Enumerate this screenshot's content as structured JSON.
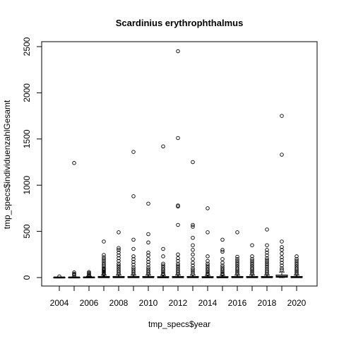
{
  "chart_data": {
    "type": "boxplot",
    "title": "Scardinius erythrophthalmus",
    "xlabel": "tmp_specs$year",
    "ylabel": "tmp_specs$individuenzahlGesamt",
    "ylim": [
      0,
      2500
    ],
    "yticks": [
      0,
      500,
      1000,
      1500,
      2000,
      2500
    ],
    "xtick_labels": [
      "2004",
      "2006",
      "2008",
      "2010",
      "2012",
      "2014",
      "2016",
      "2018",
      "2020"
    ],
    "categories": [
      "2004",
      "2005",
      "2006",
      "2007",
      "2008",
      "2009",
      "2010",
      "2011",
      "2012",
      "2013",
      "2014",
      "2015",
      "2016",
      "2017",
      "2018",
      "2019",
      "2020"
    ],
    "boxes": [
      {
        "year": "2004",
        "q1": 0,
        "median": 1,
        "q3": 3,
        "whisker_low": 0,
        "whisker_high": 5,
        "outliers": [
          12
        ]
      },
      {
        "year": "2005",
        "q1": 0,
        "median": 1,
        "q3": 4,
        "whisker_low": 0,
        "whisker_high": 8,
        "outliers": [
          25,
          35,
          40,
          55,
          1240
        ]
      },
      {
        "year": "2006",
        "q1": 0,
        "median": 2,
        "q3": 6,
        "whisker_low": 0,
        "whisker_high": 14,
        "outliers": [
          20,
          30,
          40,
          50,
          60
        ]
      },
      {
        "year": "2007",
        "q1": 1,
        "median": 4,
        "q3": 12,
        "whisker_low": 0,
        "whisker_high": 28,
        "outliers": [
          35,
          45,
          55,
          65,
          75,
          85,
          95,
          110,
          125,
          140,
          160,
          180,
          200,
          220,
          245,
          390
        ]
      },
      {
        "year": "2008",
        "q1": 1,
        "median": 4,
        "q3": 12,
        "whisker_low": 0,
        "whisker_high": 28,
        "outliers": [
          40,
          55,
          70,
          90,
          110,
          130,
          150,
          180,
          210,
          240,
          270,
          300,
          320,
          490
        ]
      },
      {
        "year": "2009",
        "q1": 1,
        "median": 4,
        "q3": 12,
        "whisker_low": 0,
        "whisker_high": 28,
        "outliers": [
          40,
          55,
          70,
          90,
          110,
          140,
          170,
          200,
          230,
          310,
          410,
          880,
          1360
        ]
      },
      {
        "year": "2010",
        "q1": 1,
        "median": 4,
        "q3": 12,
        "whisker_low": 0,
        "whisker_high": 28,
        "outliers": [
          40,
          55,
          70,
          90,
          110,
          140,
          170,
          200,
          240,
          270,
          380,
          470,
          800
        ]
      },
      {
        "year": "2011",
        "q1": 1,
        "median": 3,
        "q3": 10,
        "whisker_low": 0,
        "whisker_high": 24,
        "outliers": [
          35,
          45,
          60,
          75,
          90,
          110,
          130,
          150,
          230,
          310,
          1420
        ]
      },
      {
        "year": "2012",
        "q1": 1,
        "median": 4,
        "q3": 12,
        "whisker_low": 0,
        "whisker_high": 28,
        "outliers": [
          40,
          55,
          70,
          90,
          110,
          130,
          150,
          180,
          210,
          250,
          570,
          770,
          780,
          1510,
          2450
        ]
      },
      {
        "year": "2013",
        "q1": 1,
        "median": 4,
        "q3": 12,
        "whisker_low": 0,
        "whisker_high": 28,
        "outliers": [
          40,
          60,
          80,
          100,
          130,
          160,
          200,
          250,
          300,
          350,
          430,
          550,
          570,
          1250
        ]
      },
      {
        "year": "2014",
        "q1": 1,
        "median": 3,
        "q3": 10,
        "whisker_low": 0,
        "whisker_high": 24,
        "outliers": [
          35,
          45,
          60,
          75,
          90,
          110,
          130,
          150,
          180,
          230,
          490,
          750
        ]
      },
      {
        "year": "2015",
        "q1": 1,
        "median": 3,
        "q3": 10,
        "whisker_low": 0,
        "whisker_high": 24,
        "outliers": [
          35,
          45,
          60,
          75,
          90,
          110,
          130,
          160,
          200,
          280,
          300,
          410
        ]
      },
      {
        "year": "2016",
        "q1": 1,
        "median": 4,
        "q3": 12,
        "whisker_low": 0,
        "whisker_high": 28,
        "outliers": [
          40,
          55,
          70,
          85,
          100,
          120,
          140,
          160,
          180,
          200,
          225,
          490
        ]
      },
      {
        "year": "2017",
        "q1": 1,
        "median": 4,
        "q3": 12,
        "whisker_low": 0,
        "whisker_high": 28,
        "outliers": [
          40,
          55,
          70,
          85,
          100,
          120,
          140,
          160,
          180,
          200,
          230,
          350
        ]
      },
      {
        "year": "2018",
        "q1": 1,
        "median": 4,
        "q3": 12,
        "whisker_low": 0,
        "whisker_high": 28,
        "outliers": [
          40,
          55,
          70,
          90,
          110,
          130,
          150,
          170,
          190,
          210,
          240,
          270,
          300,
          350,
          520
        ]
      },
      {
        "year": "2019",
        "q1": 3,
        "median": 10,
        "q3": 28,
        "whisker_low": 0,
        "whisker_high": 60,
        "outliers": [
          80,
          100,
          130,
          160,
          190,
          220,
          260,
          300,
          330,
          390,
          1330,
          1750
        ]
      },
      {
        "year": "2020",
        "q1": 1,
        "median": 4,
        "q3": 12,
        "whisker_low": 0,
        "whisker_high": 28,
        "outliers": [
          40,
          55,
          70,
          85,
          100,
          120,
          140,
          160,
          180,
          200,
          230
        ]
      }
    ]
  }
}
